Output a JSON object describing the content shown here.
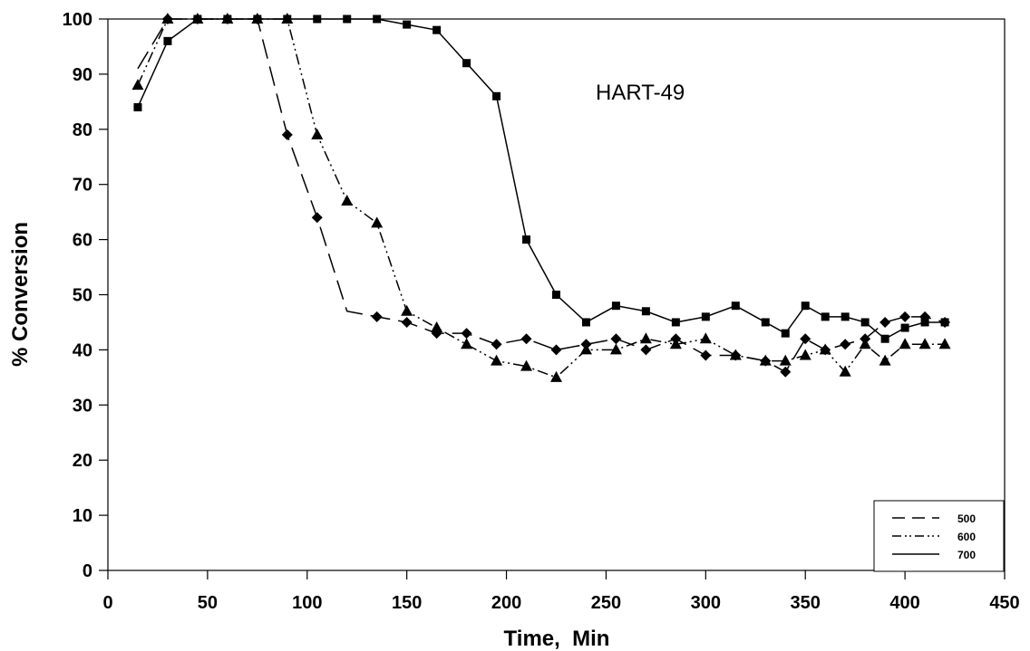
{
  "chart_data": {
    "type": "line",
    "title": "",
    "annotation": "HART-49",
    "xlabel": "Time,  Min",
    "ylabel": "% Conversion",
    "xlim": [
      0,
      450
    ],
    "ylim": [
      0,
      100
    ],
    "xticks": [
      0,
      50,
      100,
      150,
      200,
      250,
      300,
      350,
      400,
      450
    ],
    "yticks": [
      0,
      10,
      20,
      30,
      40,
      50,
      60,
      70,
      80,
      90,
      100
    ],
    "grid": false,
    "legend_position": "bottom-right",
    "series": [
      {
        "name": "500",
        "line_style": "dashed",
        "marker": "diamond",
        "points": [
          [
            15,
            91
          ],
          [
            30,
            100
          ],
          [
            45,
            100
          ],
          [
            60,
            100
          ],
          [
            75,
            100
          ],
          [
            90,
            79
          ],
          [
            105,
            64
          ],
          [
            120,
            47
          ],
          [
            135,
            46
          ],
          [
            150,
            45
          ],
          [
            165,
            43
          ],
          [
            180,
            43
          ],
          [
            195,
            41
          ],
          [
            210,
            42
          ],
          [
            225,
            40
          ],
          [
            240,
            41
          ],
          [
            255,
            42
          ],
          [
            270,
            40
          ],
          [
            285,
            42
          ],
          [
            300,
            39
          ],
          [
            315,
            39
          ],
          [
            330,
            38
          ],
          [
            340,
            36
          ],
          [
            350,
            42
          ],
          [
            360,
            40
          ],
          [
            370,
            41
          ],
          [
            380,
            42
          ],
          [
            390,
            45
          ],
          [
            400,
            46
          ],
          [
            410,
            46
          ],
          [
            420,
            45
          ]
        ]
      },
      {
        "name": "600",
        "line_style": "dash-dot-dot",
        "marker": "triangle",
        "points": [
          [
            15,
            88
          ],
          [
            30,
            100
          ],
          [
            45,
            100
          ],
          [
            60,
            100
          ],
          [
            75,
            100
          ],
          [
            90,
            100
          ],
          [
            105,
            79
          ],
          [
            120,
            67
          ],
          [
            135,
            63
          ],
          [
            150,
            47
          ],
          [
            165,
            44
          ],
          [
            180,
            41
          ],
          [
            195,
            38
          ],
          [
            210,
            37
          ],
          [
            225,
            35
          ],
          [
            240,
            40
          ],
          [
            255,
            40
          ],
          [
            270,
            42
          ],
          [
            285,
            41
          ],
          [
            300,
            42
          ],
          [
            315,
            39
          ],
          [
            330,
            38
          ],
          [
            340,
            38
          ],
          [
            350,
            39
          ],
          [
            360,
            40
          ],
          [
            370,
            36
          ],
          [
            380,
            41
          ],
          [
            390,
            38
          ],
          [
            400,
            41
          ],
          [
            410,
            41
          ],
          [
            420,
            41
          ]
        ]
      },
      {
        "name": "700",
        "line_style": "solid",
        "marker": "square",
        "points": [
          [
            15,
            84
          ],
          [
            30,
            96
          ],
          [
            45,
            100
          ],
          [
            60,
            100
          ],
          [
            75,
            100
          ],
          [
            90,
            100
          ],
          [
            105,
            100
          ],
          [
            120,
            100
          ],
          [
            135,
            100
          ],
          [
            150,
            99
          ],
          [
            165,
            98
          ],
          [
            180,
            92
          ],
          [
            195,
            86
          ],
          [
            210,
            60
          ],
          [
            225,
            50
          ],
          [
            240,
            45
          ],
          [
            255,
            48
          ],
          [
            270,
            47
          ],
          [
            285,
            45
          ],
          [
            300,
            46
          ],
          [
            315,
            48
          ],
          [
            330,
            45
          ],
          [
            340,
            43
          ],
          [
            350,
            48
          ],
          [
            360,
            46
          ],
          [
            370,
            46
          ],
          [
            380,
            45
          ],
          [
            390,
            42
          ],
          [
            400,
            44
          ],
          [
            410,
            45
          ],
          [
            420,
            45
          ]
        ]
      }
    ]
  }
}
